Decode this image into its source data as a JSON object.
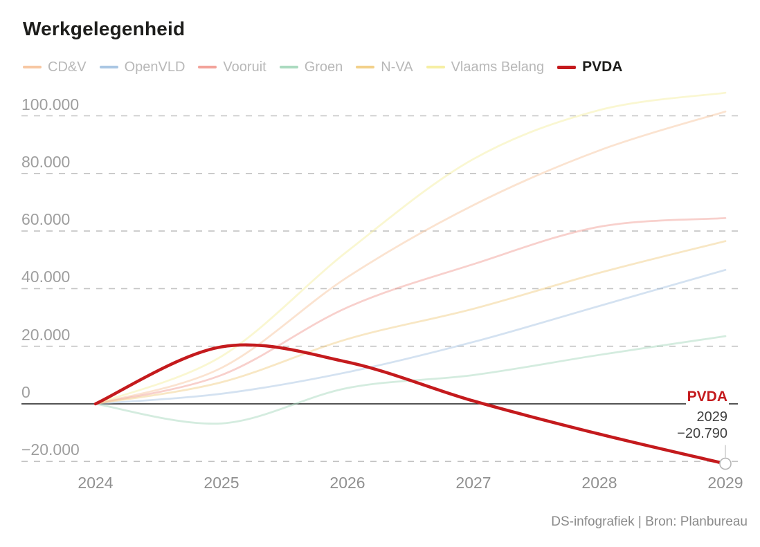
{
  "title": "Werkgelegenheid",
  "footer": {
    "credit": "DS-infografiek | Bron: Planbureau"
  },
  "colors": {
    "accent_red": "#c41a1d",
    "grid_line": "#c2c2c2",
    "zero_line": "#1a1a1a",
    "tick_text": "#9e9e9e",
    "legend_text": "#b8b8b8",
    "title_text": "#1d1d1b",
    "marker_stroke": "#b5b5b5"
  },
  "chart_data": {
    "type": "line",
    "title": "Werkgelegenheid",
    "x_values": [
      2024,
      2025,
      2026,
      2027,
      2028,
      2029
    ],
    "x_labels": [
      "2024",
      "2025",
      "2026",
      "2027",
      "2028",
      "2029"
    ],
    "ylim": [
      -27000,
      112000
    ],
    "grid": "horizontal-dashed",
    "legend_position": "top",
    "y_ticks": [
      {
        "value": 100000,
        "label": "100.000"
      },
      {
        "value": 80000,
        "label": "80.000"
      },
      {
        "value": 60000,
        "label": "60.000"
      },
      {
        "value": 40000,
        "label": "40.000"
      },
      {
        "value": 20000,
        "label": "20.000"
      },
      {
        "value": 0,
        "label": "0"
      },
      {
        "value": -20000,
        "label": "−20.000"
      }
    ],
    "series": [
      {
        "name": "CD&V",
        "color": "#f7c7a2",
        "muted": true,
        "values": [
          0,
          12500,
          44000,
          69000,
          88000,
          101500
        ]
      },
      {
        "name": "OpenVLD",
        "color": "#a9c6e3",
        "muted": true,
        "values": [
          0,
          3500,
          11000,
          21500,
          34000,
          46500
        ]
      },
      {
        "name": "Vooruit",
        "color": "#f2a29a",
        "muted": true,
        "values": [
          0,
          10000,
          33500,
          48500,
          61500,
          64500
        ]
      },
      {
        "name": "Groen",
        "color": "#aadabf",
        "muted": true,
        "values": [
          0,
          -6800,
          5500,
          10000,
          17000,
          23500
        ]
      },
      {
        "name": "N-VA",
        "color": "#f2d089",
        "muted": true,
        "values": [
          0,
          7500,
          22500,
          33000,
          45500,
          56500
        ]
      },
      {
        "name": "Vlaams Belang",
        "color": "#f6efa3",
        "muted": true,
        "values": [
          0,
          16500,
          53000,
          85000,
          102000,
          108000
        ]
      },
      {
        "name": "PVDA",
        "color": "#c41a1d",
        "muted": false,
        "values": [
          0,
          19800,
          14500,
          1000,
          -10500,
          -20790
        ]
      }
    ],
    "annotation": {
      "series_label": "PVDA",
      "year_label": "2029",
      "value_label": "−20.790",
      "x": 2029,
      "y": -20790
    }
  }
}
